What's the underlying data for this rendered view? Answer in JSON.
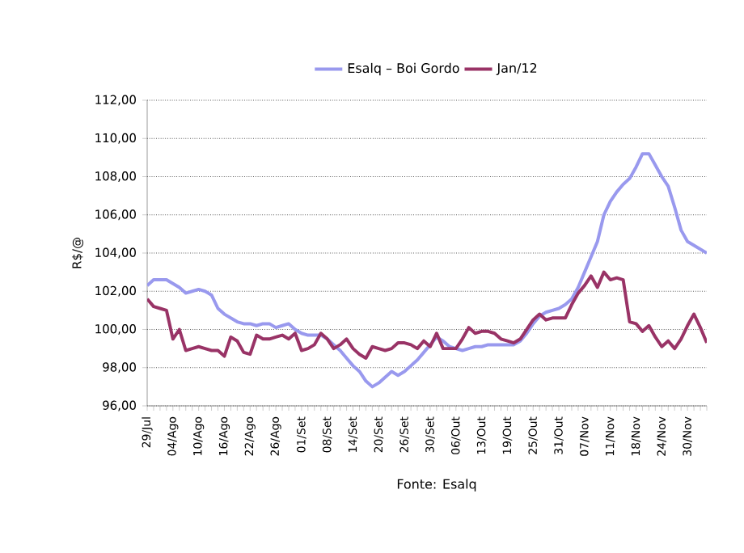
{
  "chart_data": {
    "type": "line",
    "ylabel": "R$/@",
    "legend": "top",
    "grid": "y",
    "line_style": "solid",
    "marker": "none",
    "categories": [
      "29/Jul",
      null,
      null,
      null,
      "04/Ago",
      null,
      null,
      null,
      "10/Ago",
      null,
      null,
      null,
      "16/Ago",
      null,
      null,
      null,
      "22/Ago",
      null,
      null,
      null,
      "26/Ago",
      null,
      null,
      null,
      "01/Set",
      null,
      null,
      null,
      "08/Set",
      null,
      null,
      null,
      "14/Set",
      null,
      null,
      null,
      "20/Set",
      null,
      null,
      null,
      "26/Set",
      null,
      null,
      null,
      "30/Set",
      null,
      null,
      null,
      "06/Out",
      null,
      null,
      null,
      "13/Out",
      null,
      null,
      null,
      "19/Out",
      null,
      null,
      null,
      "25/Out",
      null,
      null,
      null,
      "31/Out",
      null,
      null,
      null,
      "07/Nov",
      null,
      null,
      null,
      "11/Nov",
      null,
      null,
      null,
      "18/Nov",
      null,
      null,
      null,
      "24/Nov",
      null,
      null,
      null,
      "30/Nov",
      null,
      null,
      null
    ],
    "ylim": [
      96,
      112
    ],
    "yticks": [
      {
        "value": 96,
        "label": "96,00"
      },
      {
        "value": 98,
        "label": "98,00"
      },
      {
        "value": 100,
        "label": "100,00"
      },
      {
        "value": 102,
        "label": "102,00"
      },
      {
        "value": 104,
        "label": "104,00"
      },
      {
        "value": 106,
        "label": "106,00"
      },
      {
        "value": 108,
        "label": "108,00"
      },
      {
        "value": 110,
        "label": "110,00"
      },
      {
        "value": 112,
        "label": "112,00"
      }
    ],
    "series": [
      {
        "name": "Esalq – Boi Gordo",
        "color": "#9999ee",
        "values": [
          102.3,
          102.6,
          102.6,
          102.6,
          102.4,
          102.2,
          101.9,
          102.0,
          102.1,
          102.0,
          101.8,
          101.1,
          100.8,
          100.6,
          100.4,
          100.3,
          100.3,
          100.2,
          100.3,
          100.3,
          100.1,
          100.2,
          100.3,
          100.0,
          99.8,
          99.7,
          99.7,
          99.7,
          99.5,
          99.2,
          98.9,
          98.5,
          98.1,
          97.8,
          97.3,
          97.0,
          97.2,
          97.5,
          97.8,
          97.6,
          97.8,
          98.1,
          98.4,
          98.8,
          99.2,
          99.6,
          99.4,
          99.1,
          99.0,
          98.9,
          99.0,
          99.1,
          99.1,
          99.2,
          99.2,
          99.2,
          99.2,
          99.2,
          99.4,
          99.8,
          100.3,
          100.7,
          100.9,
          101.0,
          101.1,
          101.3,
          101.6,
          102.2,
          103.0,
          103.8,
          104.6,
          106.0,
          106.7,
          107.2,
          107.6,
          107.9,
          108.5,
          109.2,
          109.2,
          108.6,
          108.0,
          107.5,
          106.4,
          105.2,
          104.6,
          104.4,
          104.2,
          104.0
        ]
      },
      {
        "name": "Jan/12",
        "color": "#993366",
        "values": [
          101.6,
          101.2,
          101.1,
          101.0,
          99.5,
          100.0,
          98.9,
          99.0,
          99.1,
          99.0,
          98.9,
          98.9,
          98.6,
          99.6,
          99.4,
          98.8,
          98.7,
          99.7,
          99.5,
          99.5,
          99.6,
          99.7,
          99.5,
          99.8,
          98.9,
          99.0,
          99.2,
          99.8,
          99.5,
          99.0,
          99.2,
          99.5,
          99.0,
          98.7,
          98.5,
          99.1,
          99.0,
          98.9,
          99.0,
          99.3,
          99.3,
          99.2,
          99.0,
          99.4,
          99.1,
          99.8,
          99.0,
          99.0,
          99.0,
          99.5,
          100.1,
          99.8,
          99.9,
          99.9,
          99.8,
          99.5,
          99.4,
          99.3,
          99.5,
          100.0,
          100.5,
          100.8,
          100.5,
          100.6,
          100.6,
          100.6,
          101.3,
          101.9,
          102.3,
          102.8,
          102.2,
          103.0,
          102.6,
          102.7,
          102.6,
          100.4,
          100.3,
          99.9,
          100.2,
          99.6,
          99.1,
          99.4,
          99.0,
          99.5,
          100.2,
          100.8,
          100.1,
          99.3
        ]
      }
    ],
    "annotations": [
      "Fonte: Esalq"
    ]
  }
}
